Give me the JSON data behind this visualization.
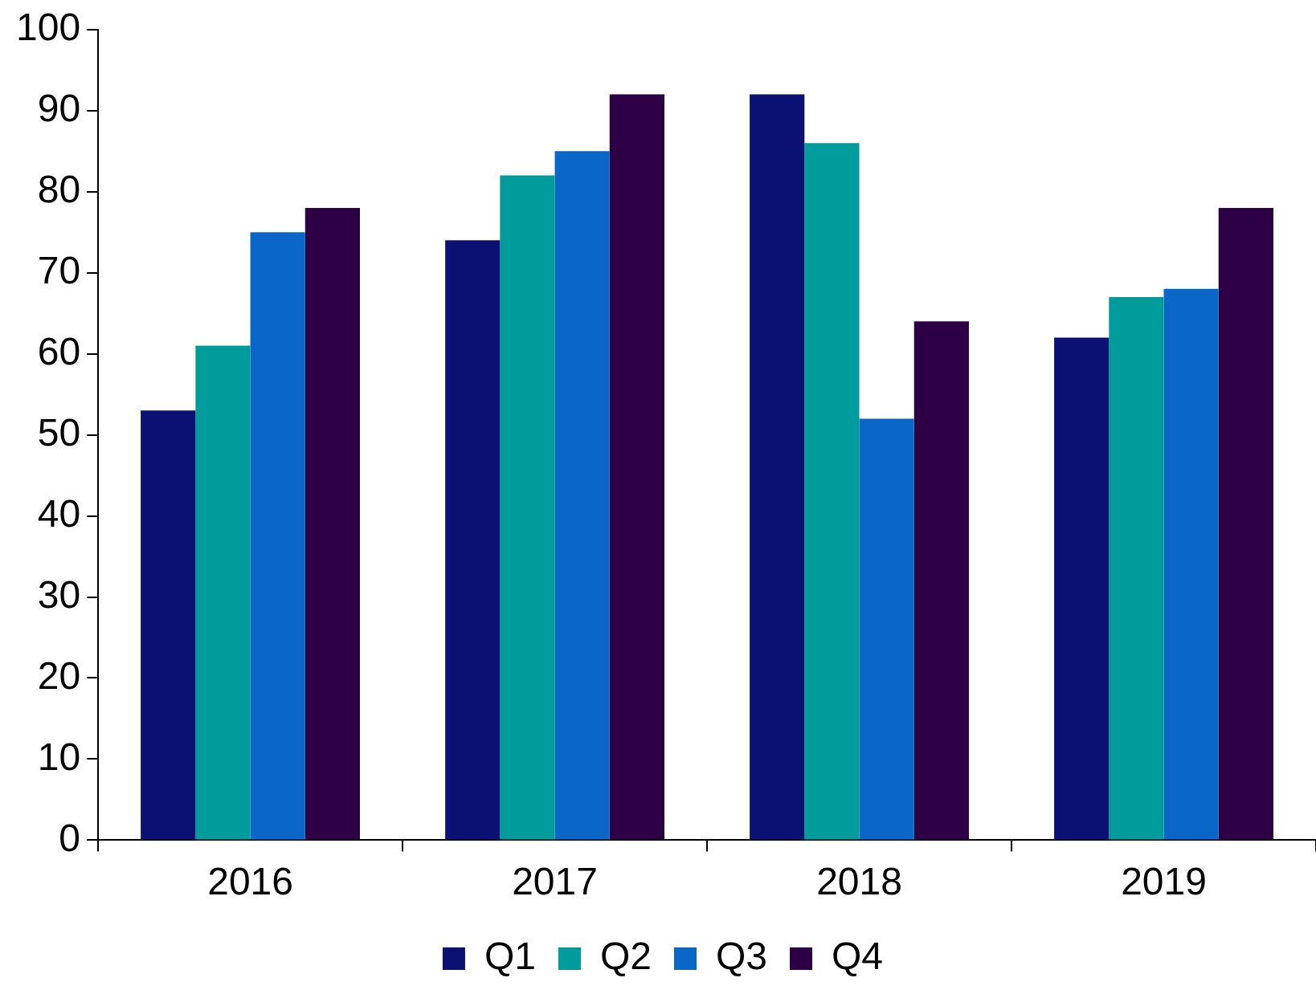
{
  "chart_data": {
    "type": "bar",
    "categories": [
      "2016",
      "2017",
      "2018",
      "2019"
    ],
    "series": [
      {
        "name": "Q1",
        "color": "#0a1172",
        "values": [
          53,
          74,
          92,
          62
        ]
      },
      {
        "name": "Q2",
        "color": "#009b9b",
        "values": [
          61,
          82,
          86,
          67
        ]
      },
      {
        "name": "Q3",
        "color": "#0a67c8",
        "values": [
          75,
          85,
          52,
          68
        ]
      },
      {
        "name": "Q4",
        "color": "#2d0046",
        "values": [
          78,
          92,
          64,
          78
        ]
      }
    ],
    "ylim": [
      0,
      100
    ],
    "yticks": [
      0,
      10,
      20,
      30,
      40,
      50,
      60,
      70,
      80,
      90,
      100
    ],
    "grid": false,
    "legend": "bottom"
  }
}
